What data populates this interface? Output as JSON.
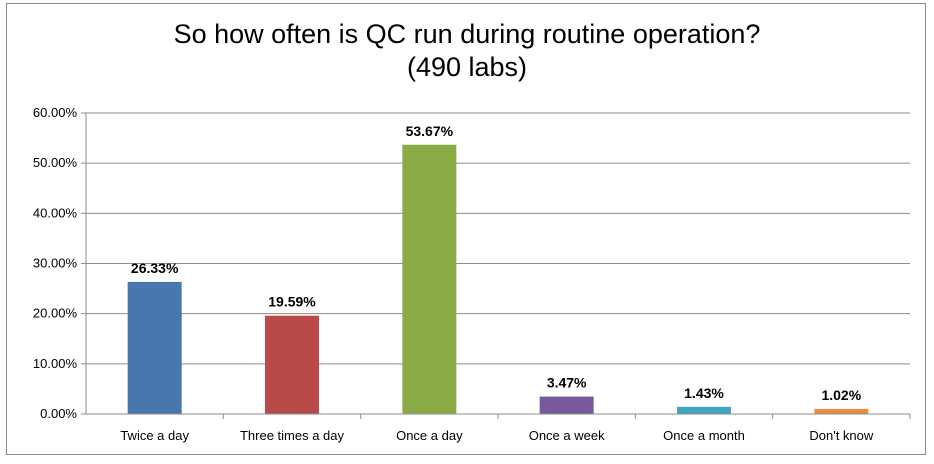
{
  "chart_data": {
    "type": "bar",
    "title": "So how often is QC run during routine operation?",
    "subtitle": "(490 labs)",
    "categories": [
      "Twice a day",
      "Three times a day",
      "Once a day",
      "Once a week",
      "Once a month",
      "Don't know"
    ],
    "values": [
      26.33,
      19.59,
      53.67,
      3.47,
      1.43,
      1.02
    ],
    "data_labels": [
      "26.33%",
      "19.59%",
      "53.67%",
      "3.47%",
      "1.43%",
      "1.02%"
    ],
    "colors": [
      "#4a76b0",
      "#b94a48",
      "#8bab47",
      "#765a9c",
      "#3fa5c2",
      "#e88e3f"
    ],
    "ylim": [
      0,
      60
    ],
    "yticks": [
      0,
      10,
      20,
      30,
      40,
      50,
      60
    ],
    "ytick_labels": [
      "0.00%",
      "10.00%",
      "20.00%",
      "30.00%",
      "40.00%",
      "50.00%",
      "60.00%"
    ],
    "grid": true,
    "legend": false,
    "xlabel": "",
    "ylabel": ""
  }
}
